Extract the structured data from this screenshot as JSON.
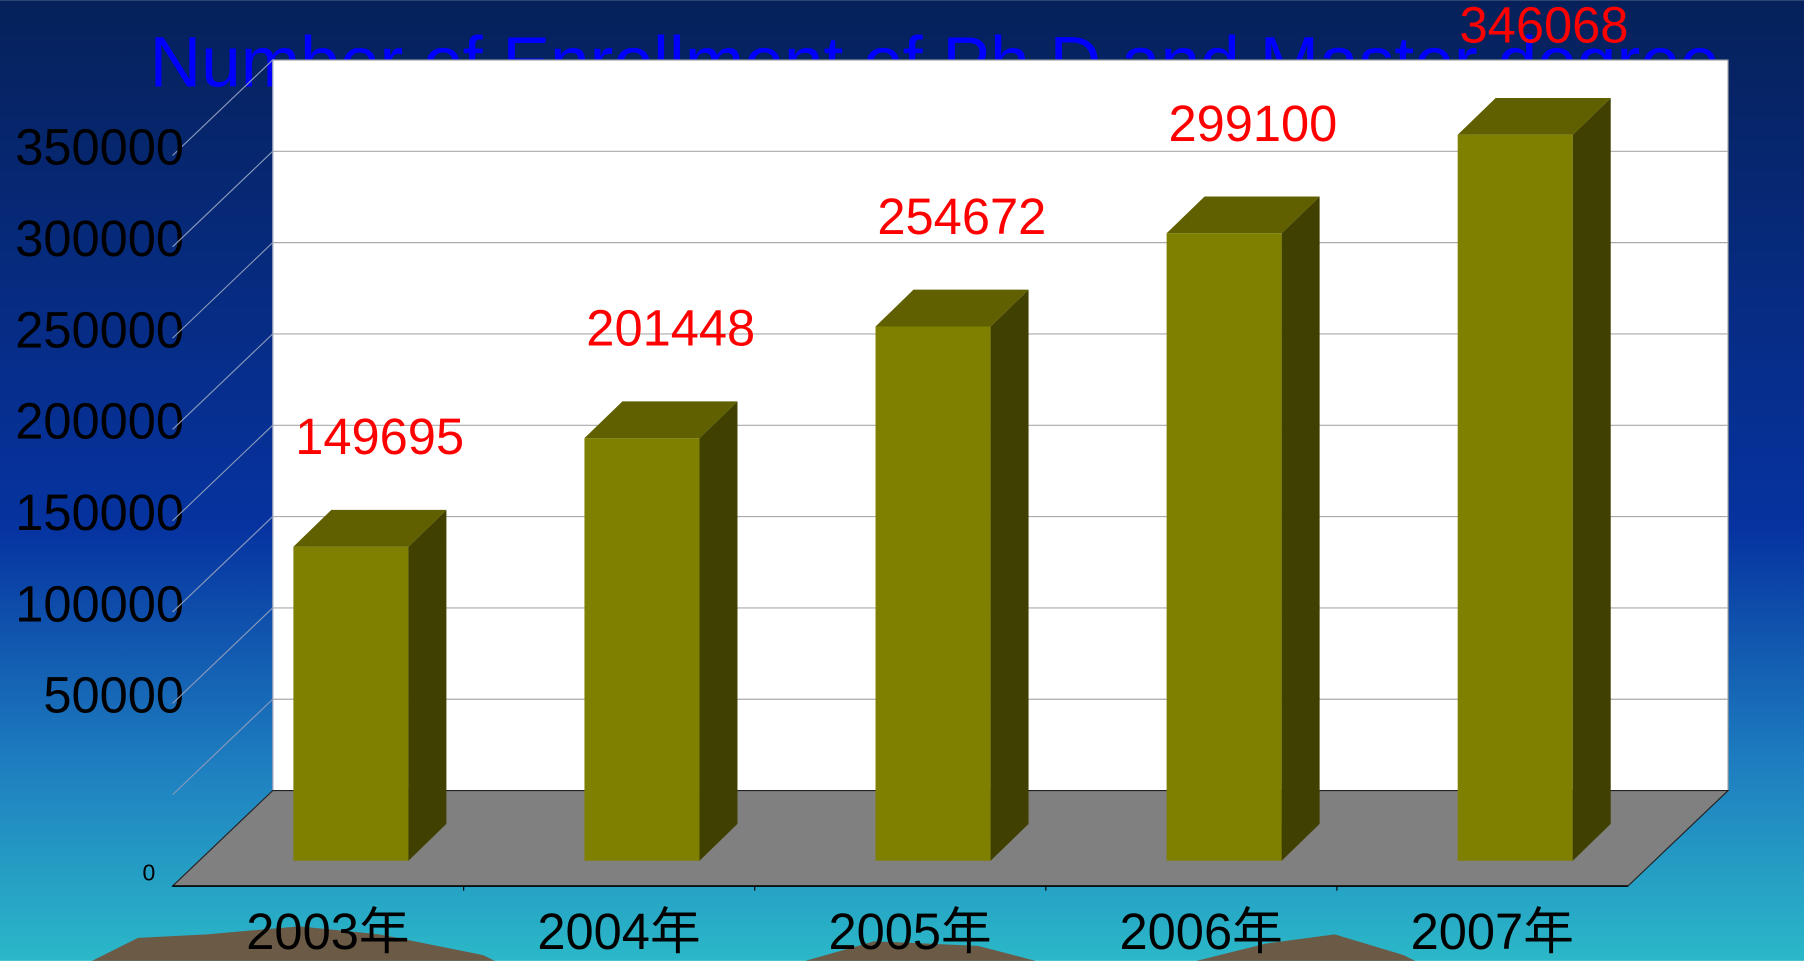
{
  "chart_data": {
    "type": "bar3d",
    "title": "Number of Enrollment of Ph.D and Master degree",
    "categories": [
      "2003年",
      "2004年",
      "2005年",
      "2006年",
      "2007年"
    ],
    "values": [
      149695,
      201448,
      254672,
      299100,
      346068
    ],
    "color": "#808000",
    "label_color": "#ff0000",
    "ylim": [
      0,
      400000
    ],
    "yticks": [
      0,
      50000,
      100000,
      150000,
      200000,
      250000,
      300000,
      350000
    ],
    "grid": true
  }
}
